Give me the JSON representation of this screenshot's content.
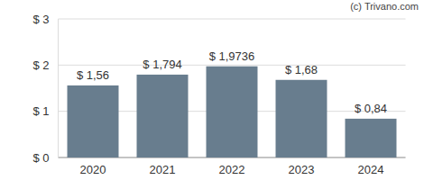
{
  "chart_data": {
    "type": "bar",
    "categories": [
      "2020",
      "2021",
      "2022",
      "2023",
      "2024"
    ],
    "values": [
      1.56,
      1.794,
      1.9736,
      1.68,
      0.84
    ],
    "value_labels": [
      "$ 1,56",
      "$ 1,794",
      "$ 1,9736",
      "$ 1,68",
      "$ 0,84"
    ],
    "color": "#687d8e",
    "ylim": [
      0,
      3
    ],
    "yticks": [
      {
        "value": 0,
        "label": "$ 0"
      },
      {
        "value": 1,
        "label": "$ 1"
      },
      {
        "value": 2,
        "label": "$ 2"
      },
      {
        "value": 3,
        "label": "$ 3"
      }
    ],
    "grid": true,
    "data_labels": true,
    "annotations": [
      "(c) Trivano.com"
    ]
  }
}
